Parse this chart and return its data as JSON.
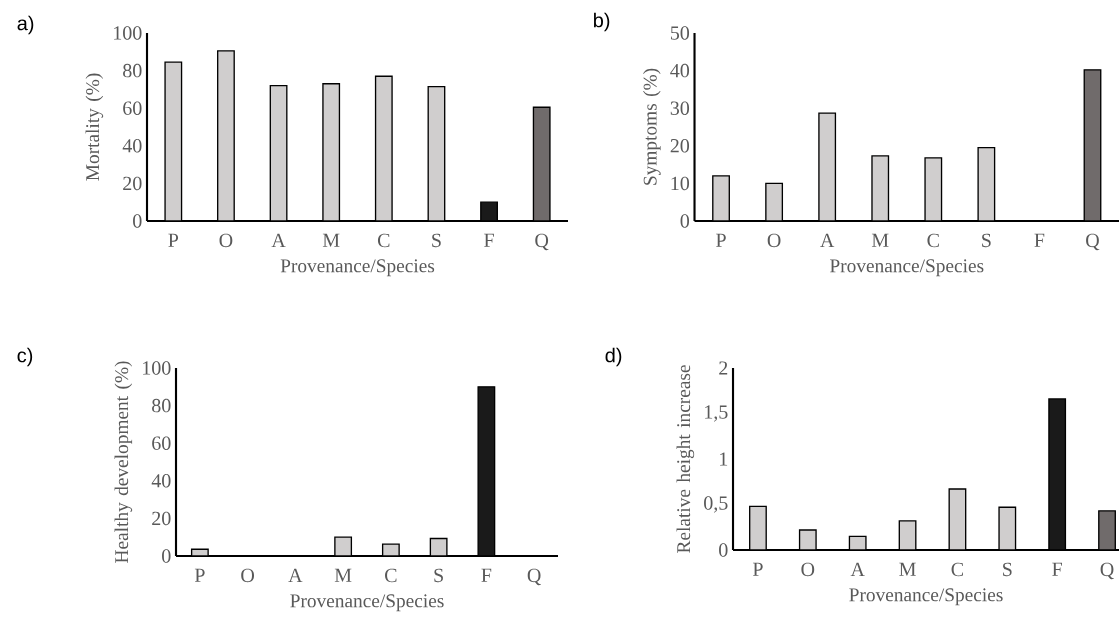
{
  "chart_data": [
    {
      "type": "bar",
      "title": "a)",
      "xlabel": "Provenance/Species",
      "ylabel": "Mortality (%)",
      "categories": [
        "P",
        "O",
        "A",
        "M",
        "C",
        "S",
        "F",
        "Q"
      ],
      "values": [
        84.5,
        90.5,
        72,
        73,
        77,
        71.5,
        10,
        60.5
      ],
      "colors": [
        "#d0cece",
        "#d0cece",
        "#d0cece",
        "#d0cece",
        "#d0cece",
        "#d0cece",
        "#1a1a1a",
        "#706b6b"
      ],
      "ylim": [
        0,
        100
      ],
      "yticks": [
        0,
        20,
        40,
        60,
        80,
        100
      ]
    },
    {
      "type": "bar",
      "title": "b)",
      "xlabel": "Provenance/Species",
      "ylabel": "Symptoms (%)",
      "categories": [
        "P",
        "O",
        "A",
        "M",
        "C",
        "S",
        "F",
        "Q"
      ],
      "values": [
        12,
        10,
        28.7,
        17.3,
        16.8,
        19.5,
        0,
        40.2
      ],
      "colors": [
        "#d0cece",
        "#d0cece",
        "#d0cece",
        "#d0cece",
        "#d0cece",
        "#d0cece",
        "#1a1a1a",
        "#706b6b"
      ],
      "ylim": [
        0,
        50
      ],
      "yticks": [
        0,
        10,
        20,
        30,
        40,
        50
      ]
    },
    {
      "type": "bar",
      "title": "c)",
      "xlabel": "Provenance/Species",
      "ylabel": "Healthy development (%)",
      "categories": [
        "P",
        "O",
        "A",
        "M",
        "C",
        "S",
        "F",
        "Q"
      ],
      "values": [
        3.6,
        0,
        0,
        10,
        6.3,
        9.3,
        90,
        0
      ],
      "colors": [
        "#d0cece",
        "#d0cece",
        "#d0cece",
        "#d0cece",
        "#d0cece",
        "#d0cece",
        "#1a1a1a",
        "#706b6b"
      ],
      "ylim": [
        0,
        100
      ],
      "yticks": [
        0,
        20,
        40,
        60,
        80,
        100
      ]
    },
    {
      "type": "bar",
      "title": "d)",
      "xlabel": "Provenance/Species",
      "ylabel": "Relative height increase",
      "categories": [
        "P",
        "O",
        "A",
        "M",
        "C",
        "S",
        "F",
        "Q"
      ],
      "values": [
        0.48,
        0.22,
        0.15,
        0.32,
        0.67,
        0.47,
        1.66,
        0.43
      ],
      "colors": [
        "#d0cece",
        "#d0cece",
        "#d0cece",
        "#d0cece",
        "#d0cece",
        "#d0cece",
        "#1a1a1a",
        "#706b6b"
      ],
      "ylim": [
        0,
        2
      ],
      "yticks": [
        0,
        {
          "value": 0.5,
          "label": "0,5"
        },
        1,
        {
          "value": 1.5,
          "label": "1,5"
        },
        2
      ]
    }
  ]
}
